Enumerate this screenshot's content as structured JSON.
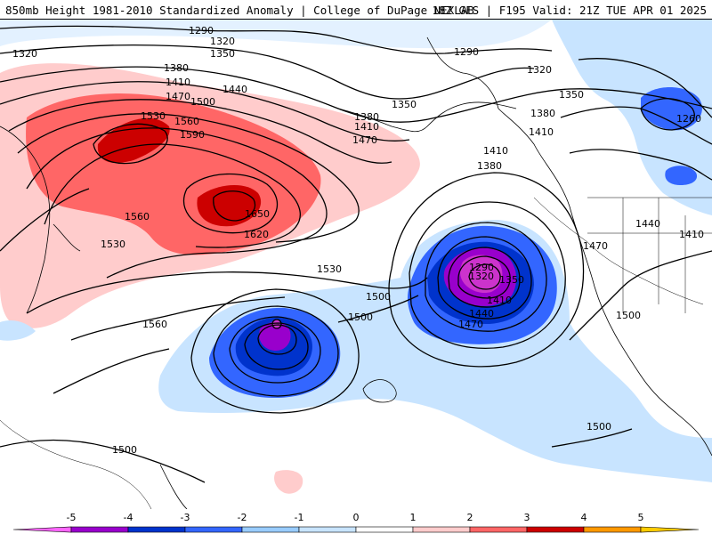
{
  "header": {
    "title": "850mb Height 1981-2010 Standardized Anomaly | College of DuPage NEXLAB",
    "run_info": "18Z GFS | F195 Valid: 21Z TUE APR 01 2025"
  },
  "colorbar": {
    "ticks": [
      "-5",
      "-4",
      "-3",
      "-2",
      "-1",
      "0",
      "1",
      "2",
      "3",
      "4",
      "5"
    ],
    "colors": [
      "#ff66ff",
      "#9900cc",
      "#0033cc",
      "#3366ff",
      "#99ccff",
      "#c8e4ff",
      "#ffffff",
      "#ffcccc",
      "#ff6666",
      "#cc0000",
      "#ff9900",
      "#ffcc00"
    ]
  },
  "contour_labels": [
    {
      "text": "1290",
      "name": "label-1290-nw"
    },
    {
      "text": "1320",
      "name": "label-1320-w"
    },
    {
      "text": "1320",
      "name": "label-1320-n"
    },
    {
      "text": "1350",
      "name": "label-1350-n"
    },
    {
      "text": "1380",
      "name": "label-1380-n"
    },
    {
      "text": "1410",
      "name": "label-1410-n"
    },
    {
      "text": "1440",
      "name": "label-1440-n"
    },
    {
      "text": "1470",
      "name": "label-1470-n"
    },
    {
      "text": "1500",
      "name": "label-1500-n"
    },
    {
      "text": "1530",
      "name": "label-1530-n"
    },
    {
      "text": "1560",
      "name": "label-1560-n"
    },
    {
      "text": "1590",
      "name": "label-1590-n"
    },
    {
      "text": "1650",
      "name": "label-1650-high"
    },
    {
      "text": "1620",
      "name": "label-1620-high"
    },
    {
      "text": "1560",
      "name": "label-1560-w"
    },
    {
      "text": "1530",
      "name": "label-1530-w"
    },
    {
      "text": "1560",
      "name": "label-1560-sw"
    },
    {
      "text": "1530",
      "name": "label-1530-mid"
    },
    {
      "text": "1500",
      "name": "label-1500-mid"
    },
    {
      "text": "1500",
      "name": "label-1500-mid2"
    },
    {
      "text": "1350",
      "name": "label-1350-alaska"
    },
    {
      "text": "1380",
      "name": "label-1380-alaska"
    },
    {
      "text": "1410",
      "name": "label-1410-alaska"
    },
    {
      "text": "1470",
      "name": "label-1470-alaska"
    },
    {
      "text": "1290",
      "name": "label-1290-ne"
    },
    {
      "text": "1320",
      "name": "label-1320-ne"
    },
    {
      "text": "1350",
      "name": "label-1350-ne"
    },
    {
      "text": "1380",
      "name": "label-1380-ne"
    },
    {
      "text": "1410",
      "name": "label-1410-ne"
    },
    {
      "text": "1410",
      "name": "label-1410-gulf"
    },
    {
      "text": "1380",
      "name": "label-1380-gulf"
    },
    {
      "text": "1290",
      "name": "label-1290-low"
    },
    {
      "text": "1320",
      "name": "label-1320-low"
    },
    {
      "text": "1350",
      "name": "label-1350-low"
    },
    {
      "text": "1410",
      "name": "label-1410-low"
    },
    {
      "text": "1440",
      "name": "label-1440-low"
    },
    {
      "text": "1470",
      "name": "label-1470-low"
    },
    {
      "text": "1260",
      "name": "label-1260-hudson"
    },
    {
      "text": "1470",
      "name": "label-1470-us"
    },
    {
      "text": "1440",
      "name": "label-1440-us"
    },
    {
      "text": "1410",
      "name": "label-1410-us"
    },
    {
      "text": "1500",
      "name": "label-1500-calif"
    },
    {
      "text": "1500",
      "name": "label-1500-se"
    },
    {
      "text": "1500",
      "name": "label-1500-sw"
    }
  ]
}
